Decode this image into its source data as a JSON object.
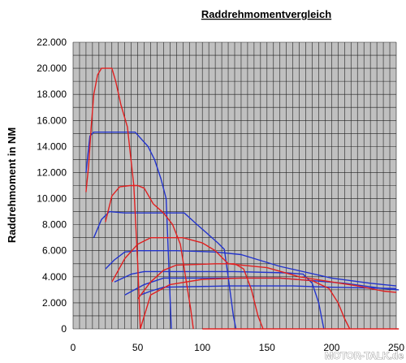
{
  "watermark": "MOTOR-TALK.de",
  "chart_data": {
    "type": "line",
    "title": "Raddrehmomentvergleich",
    "xlabel": "",
    "ylabel": "Raddrehmoment in NM",
    "xlim": [
      0,
      250
    ],
    "ylim": [
      0,
      22000
    ],
    "x_ticks": [
      "0",
      "50",
      "100",
      "150",
      "200",
      "250"
    ],
    "y_ticks": [
      "0",
      "2.000",
      "4.000",
      "6.000",
      "8.000",
      "10.000",
      "12.000",
      "14.000",
      "16.000",
      "18.000",
      "20.000",
      "22.000"
    ],
    "grid": true,
    "legend": "none",
    "colors": {
      "blue": "#2233cc",
      "red": "#e02020",
      "plot_bg": "#c0c0c0",
      "grid": "#222222"
    },
    "series": [
      {
        "color": "blue",
        "points": [
          [
            10,
            12000
          ],
          [
            13,
            14800
          ],
          [
            16,
            15100
          ],
          [
            30,
            15100
          ],
          [
            48,
            15100
          ],
          [
            58,
            14000
          ],
          [
            63,
            13000
          ],
          [
            68,
            11500
          ],
          [
            72,
            10000
          ],
          [
            74,
            5000
          ],
          [
            76,
            0
          ]
        ]
      },
      {
        "color": "blue",
        "points": [
          [
            16,
            7000
          ],
          [
            22,
            8400
          ],
          [
            28,
            9000
          ],
          [
            40,
            8900
          ],
          [
            70,
            8900
          ],
          [
            86,
            8900
          ],
          [
            96,
            8000
          ],
          [
            104,
            7300
          ],
          [
            112,
            6600
          ],
          [
            117,
            6100
          ],
          [
            120,
            4000
          ],
          [
            124,
            1000
          ],
          [
            126,
            0
          ]
        ]
      },
      {
        "color": "blue",
        "points": [
          [
            25,
            4600
          ],
          [
            32,
            5300
          ],
          [
            40,
            5900
          ],
          [
            50,
            6000
          ],
          [
            80,
            6000
          ],
          [
            110,
            5900
          ],
          [
            130,
            5700
          ],
          [
            160,
            4800
          ],
          [
            200,
            3900
          ],
          [
            230,
            3500
          ],
          [
            250,
            3300
          ]
        ]
      },
      {
        "color": "blue",
        "points": [
          [
            32,
            3600
          ],
          [
            45,
            4200
          ],
          [
            55,
            4400
          ],
          [
            90,
            4400
          ],
          [
            125,
            4400
          ],
          [
            165,
            4300
          ],
          [
            178,
            4200
          ],
          [
            185,
            3500
          ],
          [
            190,
            2000
          ],
          [
            194,
            0
          ]
        ]
      },
      {
        "color": "blue",
        "points": [
          [
            40,
            2600
          ],
          [
            55,
            3400
          ],
          [
            70,
            3900
          ],
          [
            110,
            3900
          ],
          [
            160,
            3900
          ],
          [
            210,
            3500
          ],
          [
            240,
            3100
          ],
          [
            252,
            3000
          ]
        ]
      },
      {
        "color": "blue",
        "points": [
          [
            52,
            2600
          ],
          [
            60,
            2900
          ],
          [
            70,
            3200
          ],
          [
            120,
            3300
          ],
          [
            170,
            3300
          ],
          [
            200,
            3200
          ],
          [
            250,
            3100
          ]
        ]
      },
      {
        "color": "red",
        "points": [
          [
            10,
            10500
          ],
          [
            12,
            12500
          ],
          [
            14,
            15500
          ],
          [
            16,
            18000
          ],
          [
            19,
            19500
          ],
          [
            22,
            20000
          ],
          [
            25,
            20000
          ],
          [
            30,
            20000
          ],
          [
            33,
            19000
          ],
          [
            37,
            17200
          ],
          [
            42,
            15500
          ],
          [
            47,
            11000
          ],
          [
            50,
            5000
          ],
          [
            52,
            0
          ]
        ]
      },
      {
        "color": "red",
        "points": [
          [
            25,
            8200
          ],
          [
            30,
            10200
          ],
          [
            36,
            10900
          ],
          [
            44,
            11000
          ],
          [
            50,
            11000
          ],
          [
            55,
            10800
          ],
          [
            62,
            9600
          ],
          [
            70,
            8900
          ],
          [
            77,
            8000
          ],
          [
            83,
            6500
          ],
          [
            87,
            4000
          ],
          [
            91,
            1500
          ],
          [
            93,
            0
          ]
        ]
      },
      {
        "color": "red",
        "points": [
          [
            30,
            3600
          ],
          [
            40,
            5400
          ],
          [
            50,
            6500
          ],
          [
            60,
            7000
          ],
          [
            85,
            7000
          ],
          [
            100,
            6600
          ],
          [
            110,
            6000
          ],
          [
            120,
            5000
          ],
          [
            125,
            5000
          ],
          [
            132,
            4600
          ],
          [
            138,
            3000
          ],
          [
            143,
            1000
          ],
          [
            147,
            0
          ]
        ]
      },
      {
        "color": "red",
        "points": [
          [
            50,
            2300
          ],
          [
            60,
            3600
          ],
          [
            70,
            4500
          ],
          [
            80,
            4900
          ],
          [
            110,
            5000
          ],
          [
            120,
            5000
          ],
          [
            150,
            4700
          ],
          [
            175,
            4000
          ],
          [
            200,
            3600
          ],
          [
            220,
            3300
          ],
          [
            240,
            2900
          ],
          [
            250,
            2800
          ]
        ]
      },
      {
        "color": "red",
        "points": [
          [
            52,
            0
          ],
          [
            60,
            2600
          ],
          [
            75,
            3400
          ],
          [
            100,
            3800
          ],
          [
            130,
            3900
          ],
          [
            160,
            3900
          ],
          [
            185,
            3700
          ],
          [
            198,
            3100
          ],
          [
            205,
            2000
          ],
          [
            210,
            800
          ],
          [
            214,
            0
          ]
        ]
      },
      {
        "color": "red",
        "points": [
          [
            100,
            0
          ],
          [
            150,
            0
          ],
          [
            200,
            0
          ],
          [
            252,
            0
          ]
        ]
      }
    ]
  }
}
